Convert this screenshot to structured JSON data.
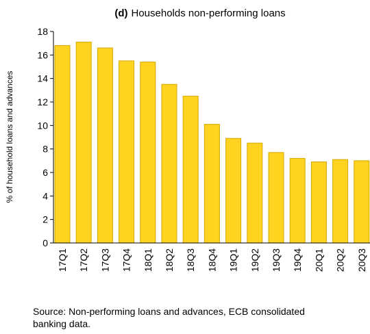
{
  "chart_data": {
    "type": "bar",
    "title_prefix": "(d)",
    "title": "Households non-performing loans",
    "xlabel": "",
    "ylabel": "% of household loans and advances",
    "ylim": [
      0,
      18
    ],
    "yticks": [
      0,
      2,
      4,
      6,
      8,
      10,
      12,
      14,
      16,
      18
    ],
    "grid": false,
    "categories": [
      "17Q1",
      "17Q2",
      "17Q3",
      "17Q4",
      "18Q1",
      "18Q2",
      "18Q3",
      "18Q4",
      "19Q1",
      "19Q2",
      "19Q3",
      "19Q4",
      "20Q1",
      "20Q2",
      "20Q3"
    ],
    "series": [
      {
        "values": [
          16.8,
          17.1,
          16.6,
          15.5,
          15.4,
          13.5,
          12.5,
          10.1,
          8.9,
          8.5,
          7.7,
          7.2,
          6.9,
          7.1,
          7.0
        ]
      }
    ],
    "colors": {
      "bar_fill": "#FFD320",
      "bar_stroke": "#D4A800",
      "axis": "#000000"
    }
  },
  "source": "Source: Non-performing loans and advances, ECB consolidated banking data."
}
